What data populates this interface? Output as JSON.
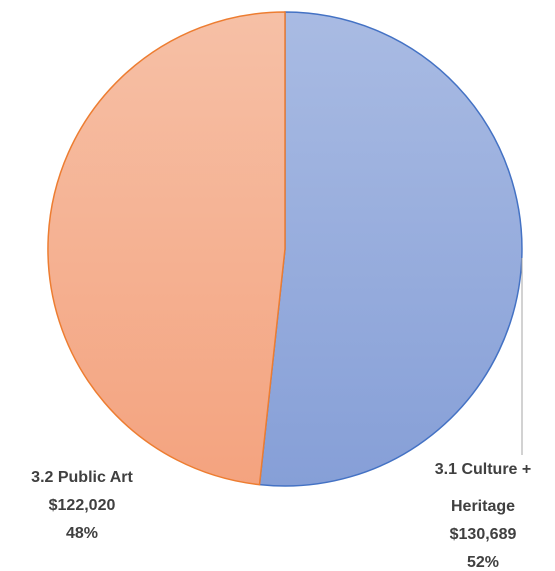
{
  "chart_data": {
    "type": "pie",
    "slices": [
      {
        "name": "3.1 Culture + Heritage",
        "label_lines": [
          "3.1 Culture +",
          "Heritage"
        ],
        "value": 130689,
        "value_label": "$130,689",
        "percent_label": "52%",
        "fill_top": "#a9bbe3",
        "fill_bottom": "#869fd7",
        "stroke": "#4472c4"
      },
      {
        "name": "3.2 Public Art",
        "label_lines": [
          "3.2 Public Art"
        ],
        "value": 122020,
        "value_label": "$122,020",
        "percent_label": "48%",
        "fill_top": "#f6c0a6",
        "fill_bottom": "#f4a37f",
        "stroke": "#ed7d31"
      }
    ],
    "start_angle_deg": 0,
    "direction": "clockwise",
    "title": "",
    "legend": "none",
    "leader_line_color": "#a6a6a6"
  }
}
